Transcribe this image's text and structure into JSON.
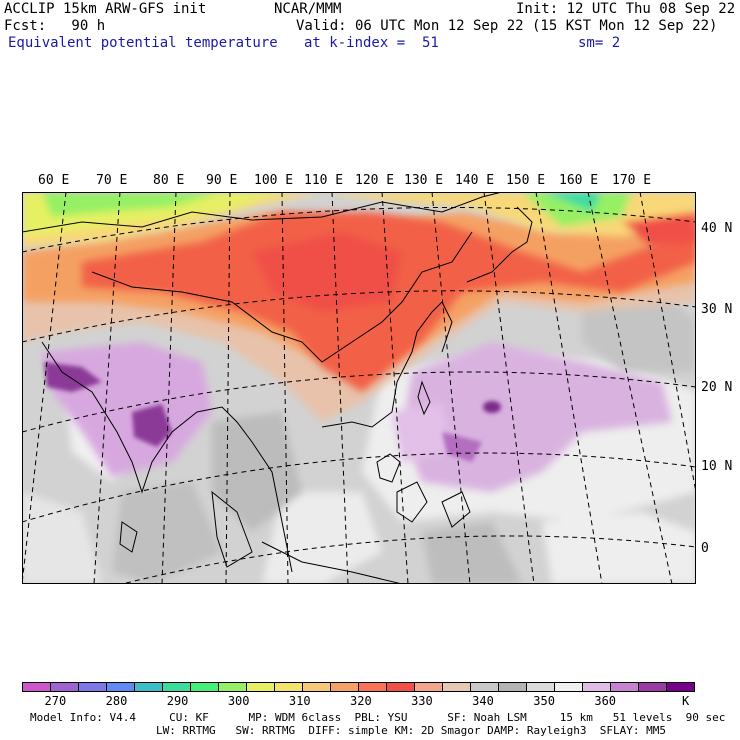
{
  "header": {
    "line1_left": "ACCLIP 15km ARW-GFS init",
    "line1_center": "NCAR/MMM",
    "line1_right": "Init: 12 UTC Thu 08 Sep 22",
    "line2_left": "Fcst:   90 h",
    "line2_right": "Valid: 06 UTC Mon 12 Sep 22 (15 KST Mon 12 Sep 22)",
    "line3_field": "Equivalent potential temperature",
    "line3_level": "at k-index =  51",
    "line3_smooth": "sm= 2"
  },
  "map": {
    "lon_labels": [
      "60 E",
      "70 E",
      "80 E",
      "90 E",
      "100 E",
      "110 E",
      "120 E",
      "130 E",
      "140 E",
      "150 E",
      "160 E",
      "170 E"
    ],
    "lat_labels": [
      "40 N",
      "30 N",
      "20 N",
      "10 N",
      "0"
    ]
  },
  "colorbar": {
    "colors": [
      "#cc55cc",
      "#a064d2",
      "#7d78e6",
      "#5f8cf0",
      "#3cbec8",
      "#3cdca0",
      "#46f078",
      "#96f064",
      "#e6f064",
      "#f5e16e",
      "#f8c878",
      "#f5a064",
      "#f8735a",
      "#f05046",
      "#f5a58c",
      "#e6c8b4",
      "#c8c8c8",
      "#b4b4b4",
      "#dcdcdc",
      "#f0f0f0",
      "#e1bee6",
      "#c882d2",
      "#9b3ca5",
      "#78008c"
    ],
    "tick_labels": [
      "270",
      "280",
      "290",
      "300",
      "310",
      "320",
      "330",
      "340",
      "350",
      "360",
      "K"
    ]
  },
  "footer": {
    "line1": "Model Info: V4.4     CU: KF      MP: WDM 6class  PBL: YSU      SF: Noah LSM     15 km   51 levels  90 sec",
    "line2": "LW: RRTMG   SW: RRTMG  DIFF: simple KM: 2D Smagor DAMP: Rayleigh3  SFLAY: MM5"
  },
  "colors": {
    "title_blue": "#1a1aa6",
    "theta_e_low_green": "#46f078",
    "theta_e_warm_red": "#f05046",
    "theta_e_gray": "#c8c8c8",
    "theta_e_purple": "#c882d2"
  }
}
